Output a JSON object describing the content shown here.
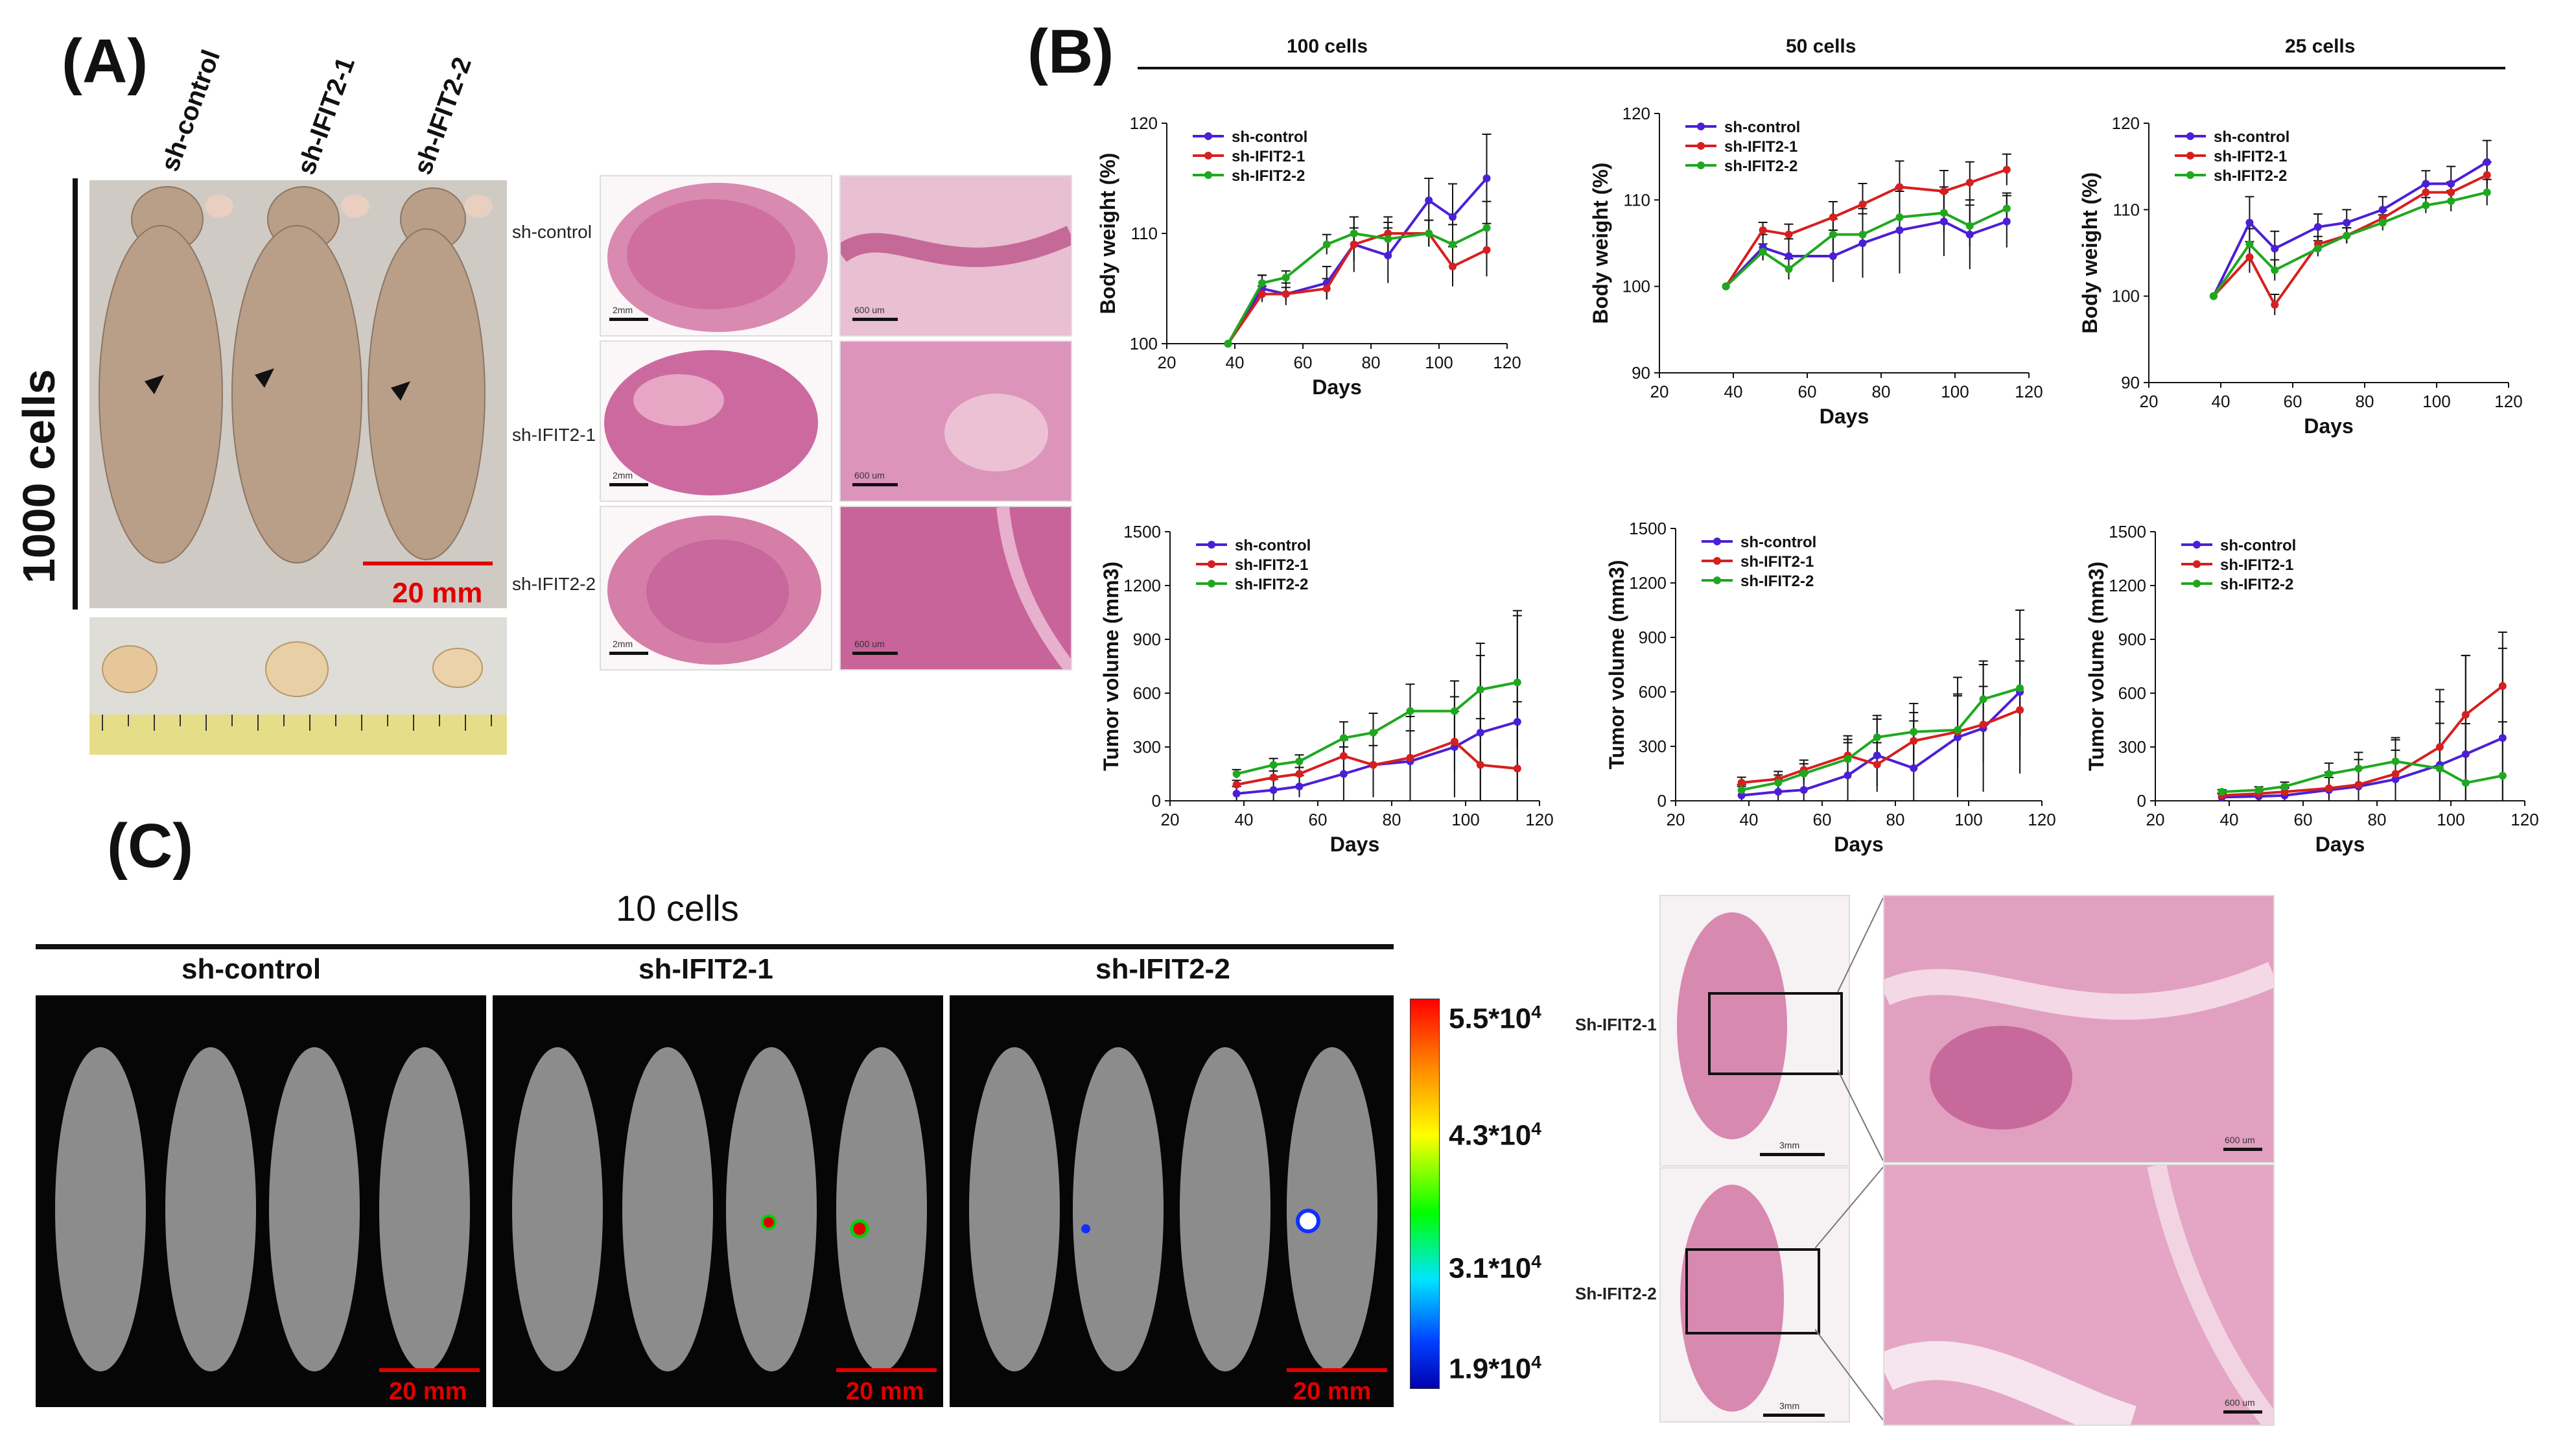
{
  "panel_labels": {
    "a": "(A)",
    "b": "(B)",
    "c": "(C)"
  },
  "panel_a": {
    "cell_count": "1000 cells",
    "groups": [
      "sh-control",
      "sh-IFIT2-1",
      "sh-IFIT2-2"
    ],
    "scale_label": "20 mm",
    "histo_rows": [
      "sh-control",
      "sh-IFIT2-1",
      "sh-IFIT2-2"
    ],
    "histo_scale_left": "2mm",
    "histo_scale_right": "600 um"
  },
  "panel_b": {
    "dose_headers": [
      "100 cells",
      "50 cells",
      "25 cells"
    ],
    "legend": [
      "sh-control",
      "sh-IFIT2-1",
      "sh-IFIT2-2"
    ]
  },
  "panel_c": {
    "title": "10 cells",
    "groups": [
      "sh-control",
      "sh-IFIT2-1",
      "sh-IFIT2-2"
    ],
    "scale_label": "20 mm",
    "colorbar": [
      "5.5*10",
      "4.3*10",
      "3.1*10",
      "1.9*10"
    ],
    "colorbar_exp": "4",
    "histo_rows": [
      "Sh-IFIT2-1",
      "Sh-IFIT2-2"
    ],
    "histo_scale_low": "3mm",
    "histo_scale_high": "600 um"
  },
  "colors": {
    "control": "#4b1fd6",
    "ifit1": "#d61f1f",
    "ifit2": "#1fa81f",
    "err": "#111111"
  },
  "chart_data": [
    {
      "type": "line",
      "title": "100 cells",
      "xlabel": "Days",
      "ylabel": "Body weight (%)",
      "xlim": [
        20,
        120
      ],
      "ylim": [
        100,
        120
      ],
      "xticks": [
        20,
        40,
        60,
        80,
        100,
        120
      ],
      "yticks": [
        100,
        110,
        120
      ],
      "x": [
        38,
        48,
        55,
        67,
        75,
        85,
        97,
        104,
        114
      ],
      "series": [
        {
          "name": "sh-control",
          "values": [
            100,
            105,
            104.5,
            105.5,
            109,
            108,
            113,
            111.5,
            115
          ]
        },
        {
          "name": "sh-IFIT2-1",
          "values": [
            100,
            104.5,
            104.5,
            105,
            109,
            110,
            110,
            107,
            108.5
          ]
        },
        {
          "name": "sh-IFIT2-2",
          "values": [
            100,
            105.5,
            106,
            109,
            110,
            109.5,
            110,
            109,
            110.5
          ]
        }
      ],
      "errors": [
        0,
        1.2,
        1,
        1.5,
        2.5,
        2.5,
        2,
        3,
        4
      ]
    },
    {
      "type": "line",
      "title": "50 cells",
      "xlabel": "Days",
      "ylabel": "Body weight (%)",
      "xlim": [
        20,
        120
      ],
      "ylim": [
        90,
        120
      ],
      "xticks": [
        20,
        40,
        60,
        80,
        100,
        120
      ],
      "yticks": [
        90,
        100,
        110,
        120
      ],
      "x": [
        38,
        48,
        55,
        67,
        75,
        85,
        97,
        104,
        114
      ],
      "series": [
        {
          "name": "sh-control",
          "values": [
            100,
            104.5,
            103.5,
            103.5,
            105,
            106.5,
            107.5,
            106,
            107.5
          ]
        },
        {
          "name": "sh-IFIT2-1",
          "values": [
            100,
            106.5,
            106,
            108,
            109.5,
            111.5,
            111,
            112,
            113.5
          ]
        },
        {
          "name": "sh-IFIT2-2",
          "values": [
            100,
            104,
            102,
            106,
            106,
            108,
            108.5,
            107,
            109
          ]
        }
      ],
      "errors": [
        0,
        1.5,
        2,
        3,
        4,
        5,
        4,
        4,
        3
      ]
    },
    {
      "type": "line",
      "title": "25 cells",
      "xlabel": "Days",
      "ylabel": "Body weight (%)",
      "xlim": [
        20,
        120
      ],
      "ylim": [
        90,
        120
      ],
      "xticks": [
        20,
        40,
        60,
        80,
        100,
        120
      ],
      "yticks": [
        90,
        100,
        110,
        120
      ],
      "x": [
        38,
        48,
        55,
        67,
        75,
        85,
        97,
        104,
        114
      ],
      "series": [
        {
          "name": "sh-control",
          "values": [
            100,
            108.5,
            105.5,
            108,
            108.5,
            110,
            113,
            113,
            115.5
          ]
        },
        {
          "name": "sh-IFIT2-1",
          "values": [
            100,
            104.5,
            99,
            106,
            107,
            109,
            112,
            112,
            114
          ]
        },
        {
          "name": "sh-IFIT2-2",
          "values": [
            100,
            106,
            103,
            105.5,
            107,
            108.5,
            110.5,
            111,
            112
          ]
        }
      ],
      "errors": [
        0,
        3,
        2,
        1.5,
        1.5,
        1.5,
        1.5,
        2,
        2.5
      ]
    },
    {
      "type": "line",
      "title": "100 cells",
      "xlabel": "Days",
      "ylabel": "Tumor volume (mm3)",
      "xlim": [
        20,
        120
      ],
      "ylim": [
        0,
        1500
      ],
      "xticks": [
        20,
        40,
        60,
        80,
        100,
        120
      ],
      "yticks": [
        0,
        300,
        600,
        900,
        1200,
        1500
      ],
      "x": [
        38,
        48,
        55,
        67,
        75,
        85,
        97,
        104,
        114
      ],
      "series": [
        {
          "name": "sh-control",
          "values": [
            40,
            60,
            80,
            150,
            200,
            220,
            300,
            380,
            440
          ]
        },
        {
          "name": "sh-IFIT2-1",
          "values": [
            90,
            130,
            150,
            250,
            200,
            240,
            330,
            200,
            180
          ]
        },
        {
          "name": "sh-IFIT2-2",
          "values": [
            150,
            200,
            220,
            350,
            380,
            500,
            500,
            620,
            660
          ]
        }
      ],
      "errors": [
        40,
        60,
        60,
        150,
        180,
        250,
        280,
        430,
        620
      ]
    },
    {
      "type": "line",
      "title": "50 cells",
      "xlabel": "Days",
      "ylabel": "Tumor volume (mm3)",
      "xlim": [
        20,
        120
      ],
      "ylim": [
        0,
        1500
      ],
      "xticks": [
        20,
        40,
        60,
        80,
        100,
        120
      ],
      "yticks": [
        0,
        300,
        600,
        900,
        1200,
        1500
      ],
      "x": [
        38,
        48,
        55,
        67,
        75,
        85,
        97,
        104,
        114
      ],
      "series": [
        {
          "name": "sh-control",
          "values": [
            30,
            50,
            60,
            140,
            250,
            180,
            350,
            400,
            600
          ]
        },
        {
          "name": "sh-IFIT2-1",
          "values": [
            100,
            120,
            170,
            250,
            200,
            330,
            380,
            420,
            500
          ]
        },
        {
          "name": "sh-IFIT2-2",
          "values": [
            60,
            100,
            150,
            230,
            350,
            380,
            390,
            560,
            620
          ]
        }
      ],
      "errors": [
        50,
        70,
        90,
        180,
        200,
        260,
        330,
        350,
        450
      ]
    },
    {
      "type": "line",
      "title": "25 cells",
      "xlabel": "Days",
      "ylabel": "Tumor volume (mm3)",
      "xlim": [
        20,
        120
      ],
      "ylim": [
        0,
        1500
      ],
      "xticks": [
        20,
        40,
        60,
        80,
        100,
        120
      ],
      "yticks": [
        0,
        300,
        600,
        900,
        1200,
        1500
      ],
      "x": [
        38,
        48,
        55,
        67,
        75,
        85,
        97,
        104,
        114
      ],
      "series": [
        {
          "name": "sh-control",
          "values": [
            20,
            25,
            30,
            60,
            80,
            120,
            200,
            260,
            350
          ]
        },
        {
          "name": "sh-IFIT2-1",
          "values": [
            30,
            40,
            50,
            70,
            90,
            150,
            300,
            480,
            640
          ]
        },
        {
          "name": "sh-IFIT2-2",
          "values": [
            50,
            60,
            80,
            150,
            180,
            220,
            180,
            100,
            140
          ]
        }
      ],
      "errors": [
        20,
        30,
        40,
        100,
        150,
        220,
        420,
        550,
        500
      ]
    }
  ]
}
